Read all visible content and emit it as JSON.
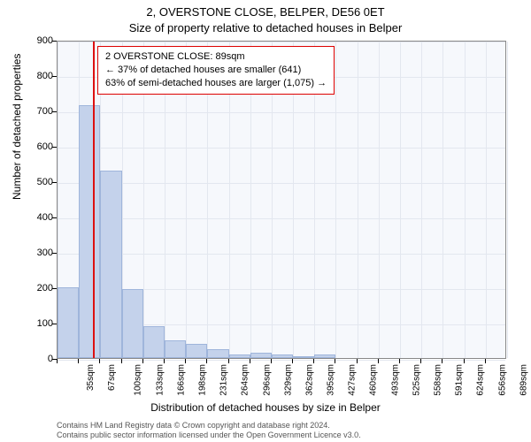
{
  "title_line1": "2, OVERSTONE CLOSE, BELPER, DE56 0ET",
  "title_line2": "Size of property relative to detached houses in Belper",
  "ylabel": "Number of detached properties",
  "xlabel": "Distribution of detached houses by size in Belper",
  "chart": {
    "type": "histogram",
    "background_color": "#f6f8fc",
    "bar_fill": "#c4d2eb",
    "bar_border": "#9fb5db",
    "grid_color": "#e3e7ef",
    "marker_color": "#d11",
    "ylim": [
      0,
      900
    ],
    "ytick_step": 100,
    "x_bin_start": 35,
    "x_bin_width": 32.666,
    "x_bins": 21,
    "y_ticks": [
      0,
      100,
      200,
      300,
      400,
      500,
      600,
      700,
      800,
      900
    ],
    "x_labels": [
      "35sqm",
      "67sqm",
      "100sqm",
      "133sqm",
      "166sqm",
      "198sqm",
      "231sqm",
      "264sqm",
      "296sqm",
      "329sqm",
      "362sqm",
      "395sqm",
      "427sqm",
      "460sqm",
      "493sqm",
      "525sqm",
      "558sqm",
      "591sqm",
      "624sqm",
      "656sqm",
      "689sqm"
    ],
    "values": [
      200,
      715,
      530,
      195,
      90,
      50,
      40,
      25,
      10,
      15,
      10,
      5,
      10,
      0,
      0,
      0,
      0,
      0,
      0,
      0,
      0
    ],
    "marker_value_sqm": 89,
    "annotation": {
      "line1": "2 OVERSTONE CLOSE: 89sqm",
      "line2": "← 37% of detached houses are smaller (641)",
      "line3": "63% of semi-detached houses are larger (1,075) →"
    }
  },
  "credits": {
    "line1": "Contains HM Land Registry data © Crown copyright and database right 2024.",
    "line2": "Contains public sector information licensed under the Open Government Licence v3.0."
  }
}
